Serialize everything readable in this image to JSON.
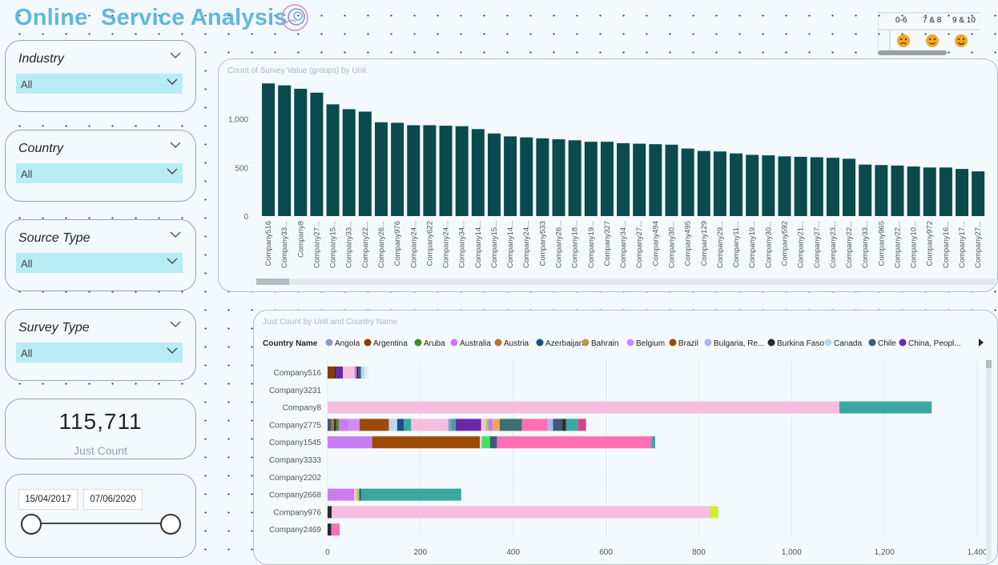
{
  "header": {
    "title": "Online  Service Analysis"
  },
  "slicers": [
    {
      "label": "Industry",
      "value": "All"
    },
    {
      "label": "Country",
      "value": "All"
    },
    {
      "label": "Source Type",
      "value": "All"
    },
    {
      "label": "Survey Type",
      "value": "All"
    }
  ],
  "kpi": {
    "value": "115,711",
    "label": "Just Count"
  },
  "date_range": {
    "start": "15/04/2017",
    "end": "07/06/2020"
  },
  "score_legend": {
    "groups": [
      {
        "label": "0-6",
        "icon": "sad-face-icon"
      },
      {
        "label": "7 & 8",
        "icon": "neutral-face-icon"
      },
      {
        "label": "9 & 10",
        "icon": "happy-face-icon"
      }
    ],
    "face_color": "#f4a623"
  },
  "colors": {
    "title": "#5fb8de",
    "bar": "#0b4a4f",
    "slicer_dropdown": "#b7ecf5"
  },
  "chart_data": [
    {
      "type": "bar",
      "title": "Count of Survey Value (groups) by Unit",
      "ylim": [
        0,
        1400
      ],
      "yticks": [
        0,
        500,
        1000
      ],
      "ytick_labels": [
        "0",
        "500",
        "1,000"
      ],
      "categories": [
        "Company516",
        "Company33...",
        "Company8",
        "Company27...",
        "Company15...",
        "Company33...",
        "Company22...",
        "Company26...",
        "Company976",
        "Company24...",
        "Company622",
        "Company24...",
        "Company34...",
        "Company14...",
        "Company15...",
        "Company14...",
        "Company24...",
        "Company533",
        "Company26...",
        "Company18...",
        "Company19...",
        "Company327",
        "Company34...",
        "Company27...",
        "Company494",
        "Company30...",
        "Company495",
        "Company129",
        "Company29...",
        "Company11...",
        "Company19...",
        "Company30...",
        "Company592",
        "Company21...",
        "Company27...",
        "Company23...",
        "Company22...",
        "Company33...",
        "Company965",
        "Company22...",
        "Company10...",
        "Company972",
        "Company16...",
        "Company17...",
        "Company27..."
      ],
      "values": [
        1365,
        1345,
        1310,
        1270,
        1150,
        1100,
        1075,
        965,
        960,
        935,
        935,
        930,
        925,
        895,
        850,
        820,
        810,
        800,
        790,
        780,
        765,
        765,
        750,
        745,
        740,
        735,
        695,
        670,
        665,
        645,
        630,
        625,
        615,
        610,
        605,
        600,
        590,
        530,
        525,
        520,
        510,
        500,
        500,
        485,
        460
      ]
    },
    {
      "type": "bar",
      "orientation": "horizontal",
      "stacked": true,
      "title": "Just Count by Unit and Country Name",
      "legend_title": "Country Name",
      "legend": [
        {
          "name": "Angola",
          "color": "#8a9ec9"
        },
        {
          "name": "Argentina",
          "color": "#8a3b00"
        },
        {
          "name": "Aruba",
          "color": "#4b8a1f"
        },
        {
          "name": "Australia",
          "color": "#c97cf0"
        },
        {
          "name": "Austria",
          "color": "#b7722e"
        },
        {
          "name": "Azerbaijan",
          "color": "#1c4f82"
        },
        {
          "name": "Bahrain",
          "color": "#b59a52"
        },
        {
          "name": "Belgium",
          "color": "#d18bf2"
        },
        {
          "name": "Brazil",
          "color": "#9c4a08"
        },
        {
          "name": "Bulgaria, Re...",
          "color": "#a9b6e8"
        },
        {
          "name": "Burkina Faso",
          "color": "#2a2a2a"
        },
        {
          "name": "Canada",
          "color": "#b9d7f2"
        },
        {
          "name": "Chile",
          "color": "#3c5a7a"
        },
        {
          "name": "China, Peopl...",
          "color": "#6a2aa8"
        }
      ],
      "xlim": [
        0,
        1400
      ],
      "xticks": [
        0,
        200,
        400,
        600,
        800,
        1000,
        1200,
        1400
      ],
      "xtick_labels": [
        "0",
        "200",
        "400",
        "600",
        "800",
        "1,000",
        "1,200",
        "1,400"
      ],
      "categories": [
        "Company516",
        "Company3231",
        "Company8",
        "Company2775",
        "Company1545",
        "Company3333",
        "Company2202",
        "Company2668",
        "Company976",
        "Company2469"
      ],
      "rows": [
        [
          {
            "value": 15,
            "color": "#8a3b00"
          },
          {
            "value": 3,
            "color": "#2a2a2a"
          },
          {
            "value": 15,
            "color": "#6a2aa8"
          },
          {
            "value": 25,
            "color": "#f7bde0"
          },
          {
            "value": 5,
            "color": "#c97cf0"
          },
          {
            "value": 3,
            "color": "#2a2a2a"
          },
          {
            "value": 6,
            "color": "#3c5a7a"
          },
          {
            "value": 8,
            "color": "#b9d7f2"
          },
          {
            "value": 8,
            "color": "#e8eef8"
          }
        ],
        [],
        [
          {
            "value": 1103,
            "color": "#f7bde0"
          },
          {
            "value": 199,
            "color": "#3aa8a2"
          }
        ],
        [
          {
            "value": 8,
            "color": "#3c5a7a"
          },
          {
            "value": 6,
            "color": "#b7722e"
          },
          {
            "value": 4,
            "color": "#2a2a2a"
          },
          {
            "value": 6,
            "color": "#4b8a1f"
          },
          {
            "value": 20,
            "color": "#c97cf0"
          },
          {
            "value": 25,
            "color": "#d18bf2"
          },
          {
            "value": 63,
            "color": "#9c4a08"
          },
          {
            "value": 18,
            "color": "#b9d7f2"
          },
          {
            "value": 14,
            "color": "#1c4f82"
          },
          {
            "value": 16,
            "color": "#3aa8a2"
          },
          {
            "value": 80,
            "color": "#f7bde0"
          },
          {
            "value": 6,
            "color": "#8a9ec9"
          },
          {
            "value": 10,
            "color": "#3aa8a2"
          },
          {
            "value": 55,
            "color": "#6a2aa8"
          },
          {
            "value": 10,
            "color": "#f7bde0"
          },
          {
            "value": 5,
            "color": "#8be04a"
          },
          {
            "value": 10,
            "color": "#c97cf0"
          },
          {
            "value": 15,
            "color": "#f5a45a"
          },
          {
            "value": 48,
            "color": "#3c6e72"
          },
          {
            "value": 55,
            "color": "#ff6fb5"
          },
          {
            "value": 12,
            "color": "#a9b6e8"
          },
          {
            "value": 20,
            "color": "#3c5a7a"
          },
          {
            "value": 8,
            "color": "#2a2a2a"
          },
          {
            "value": 25,
            "color": "#3aa8a2"
          },
          {
            "value": 18,
            "color": "#d6428e"
          }
        ],
        [
          {
            "value": 96,
            "color": "#c97cf0"
          },
          {
            "value": 232,
            "color": "#9c4a08"
          },
          {
            "value": 4,
            "color": "#ffd0e8"
          },
          {
            "value": 18,
            "color": "#42e35a"
          },
          {
            "value": 15,
            "color": "#3c5a7a"
          },
          {
            "value": 333,
            "color": "#ff6fb5"
          },
          {
            "value": 8,
            "color": "#3aa8a2"
          }
        ],
        [],
        [],
        [
          {
            "value": 57,
            "color": "#c97cf0"
          },
          {
            "value": 6,
            "color": "#f7bde0"
          },
          {
            "value": 5,
            "color": "#8be04a"
          },
          {
            "value": 5,
            "color": "#3c5a7a"
          },
          {
            "value": 215,
            "color": "#3aa8a2"
          }
        ],
        [
          {
            "value": 9,
            "color": "#2a2a2a"
          },
          {
            "value": 816,
            "color": "#f7bde0"
          },
          {
            "value": 17,
            "color": "#c8f02a"
          }
        ],
        [
          {
            "value": 8,
            "color": "#2a2a2a"
          },
          {
            "value": 18,
            "color": "#ff6fb5"
          }
        ]
      ]
    }
  ]
}
